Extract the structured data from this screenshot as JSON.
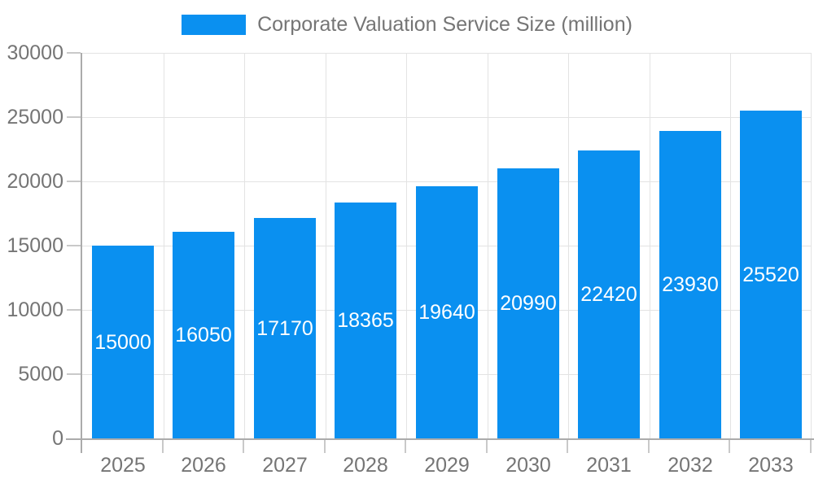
{
  "legend": {
    "label": "Corporate Valuation Service Size (million)"
  },
  "chart_data": {
    "type": "bar",
    "title": "Corporate Valuation Service Size (million)",
    "series_name": "Corporate Valuation Service Size (million)",
    "categories": [
      "2025",
      "2026",
      "2027",
      "2028",
      "2029",
      "2030",
      "2031",
      "2032",
      "2033"
    ],
    "values": [
      15000,
      16050,
      17170,
      18365,
      19640,
      20990,
      22420,
      23930,
      25520
    ],
    "xlabel": "",
    "ylabel": "",
    "ylim": [
      0,
      30000
    ],
    "yticks": [
      0,
      5000,
      10000,
      15000,
      20000,
      25000,
      30000
    ],
    "grid": true,
    "legend_position": "top-center",
    "value_label_position": "inside-center",
    "colors": {
      "bar": "#0a90f0",
      "value_label": "#ffffff",
      "gridline": "#e3e3e3",
      "axis_line": "#ababab",
      "tick_mark": "#c9c9c9",
      "tick_label": "#757575",
      "legend_text": "#757575",
      "background": "#ffffff"
    }
  }
}
